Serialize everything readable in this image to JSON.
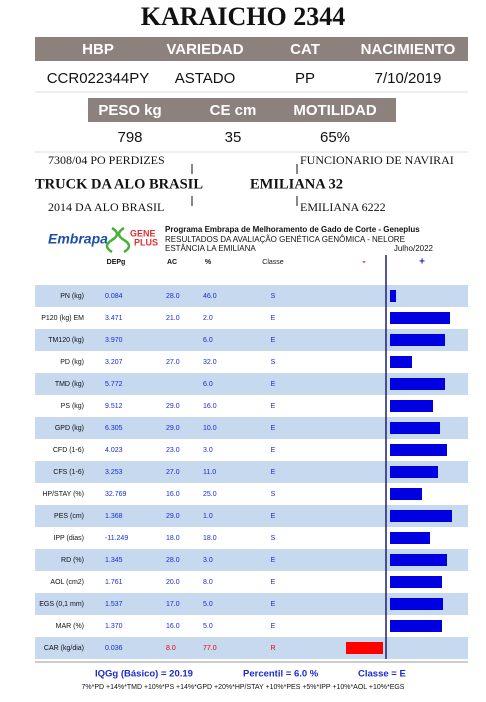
{
  "title": "KARAICHO 2344",
  "animal": {
    "headers": [
      "HBP",
      "VARIEDAD",
      "CAT",
      "NACIMIENTO"
    ],
    "values": [
      "CCR022344PY",
      "ASTADO",
      "PP",
      "7/10/2019"
    ]
  },
  "measures": {
    "headers": [
      "PESO kg",
      "CE cm",
      "MOTILIDAD"
    ],
    "values": [
      "798",
      "35",
      "65%"
    ]
  },
  "pedigree": {
    "sire_sire": "7308/04 PO PERDIZES",
    "sire": "TRUCK DA ALO BRASIL",
    "sire_dam": "2014 DA ALO BRASIL",
    "dam_sire": "FUNCIONARIO DE NAVIRAI",
    "dam": "EMILIANA 32",
    "dam_dam": "EMILIANA 6222"
  },
  "program": {
    "logo1": "Embrapa",
    "logo2": [
      "GENE",
      "PLUS"
    ],
    "name": "Programa Embrapa de Melhoramento de Gado de Corte - Geneplus",
    "subtitle": "RESULTADOS DA AVALIAÇÃO GENÉTICA GENÔMICA - NELORE",
    "farm": "ESTÂNCIA LA EMILIANA",
    "date": "Julho/2022"
  },
  "table": {
    "columns": [
      "DEPg",
      "AC",
      "%",
      "Classe",
      "-",
      "+"
    ],
    "bar_lim": [
      -45,
      80
    ],
    "bar_colors": {
      "positive": "#0000e0",
      "negative": "#ff0000"
    },
    "rows": [
      {
        "trait": "PN (kg)",
        "depg": "0.084",
        "ac": "28.0",
        "pct": "46.0",
        "classe": "S",
        "bar": 6
      },
      {
        "trait": "P120 (kg) EM",
        "depg": "3.471",
        "ac": "21.0",
        "pct": "2.0",
        "classe": "E",
        "bar": 60
      },
      {
        "trait": "TM120 (kg)",
        "depg": "3.970",
        "ac": null,
        "pct": "6.0",
        "classe": "E",
        "bar": 55
      },
      {
        "trait": "PD (kg)",
        "depg": "3.207",
        "ac": "27.0",
        "pct": "32.0",
        "classe": "S",
        "bar": 22
      },
      {
        "trait": "TMD (kg)",
        "depg": "5.772",
        "ac": null,
        "pct": "6.0",
        "classe": "E",
        "bar": 55
      },
      {
        "trait": "PS (kg)",
        "depg": "9.512",
        "ac": "29.0",
        "pct": "16.0",
        "classe": "E",
        "bar": 43
      },
      {
        "trait": "GPD (kg)",
        "depg": "6.305",
        "ac": "29.0",
        "pct": "10.0",
        "classe": "E",
        "bar": 50
      },
      {
        "trait": "CFD (1-6)",
        "depg": "4.023",
        "ac": "23.0",
        "pct": "3.0",
        "classe": "E",
        "bar": 57
      },
      {
        "trait": "CFS (1-6)",
        "depg": "3.253",
        "ac": "27.0",
        "pct": "11.0",
        "classe": "E",
        "bar": 48
      },
      {
        "trait": "HP/STAY (%)",
        "depg": "32.769",
        "ac": "16.0",
        "pct": "25.0",
        "classe": "S",
        "bar": 32
      },
      {
        "trait": "PES (cm)",
        "depg": "1.368",
        "ac": "29.0",
        "pct": "1.0",
        "classe": "E",
        "bar": 62
      },
      {
        "trait": "IPP (dias)",
        "depg": "-11.249",
        "ac": "18.0",
        "pct": "18.0",
        "classe": "S",
        "bar": 40
      },
      {
        "trait": "RD (%)",
        "depg": "1.345",
        "ac": "28.0",
        "pct": "3.0",
        "classe": "E",
        "bar": 57
      },
      {
        "trait": "AOL (cm2)",
        "depg": "1.761",
        "ac": "20.0",
        "pct": "8.0",
        "classe": "E",
        "bar": 52
      },
      {
        "trait": "EGS (0,1 mm)",
        "depg": "1.537",
        "ac": "17.0",
        "pct": "5.0",
        "classe": "E",
        "bar": 53
      },
      {
        "trait": "MAR (%)",
        "depg": "1.370",
        "ac": "16.0",
        "pct": "5.0",
        "classe": "E",
        "bar": 52
      },
      {
        "trait": "CAR (kg/dia)",
        "depg": "0.036",
        "ac": "8.0",
        "pct": "77.0",
        "classe": "R",
        "bar": -37
      }
    ]
  },
  "summary": {
    "iqg": "IQGg (Básico) = 20.19",
    "percentil": "Percentil = 6.0 %",
    "classe": "Classe = E",
    "formula": "7%*PD +14%*TMD +10%*PS +14%*GPD +20%*HP/STAY +10%*PES +5%*IPP +10%*AOL +10%*EGS"
  }
}
